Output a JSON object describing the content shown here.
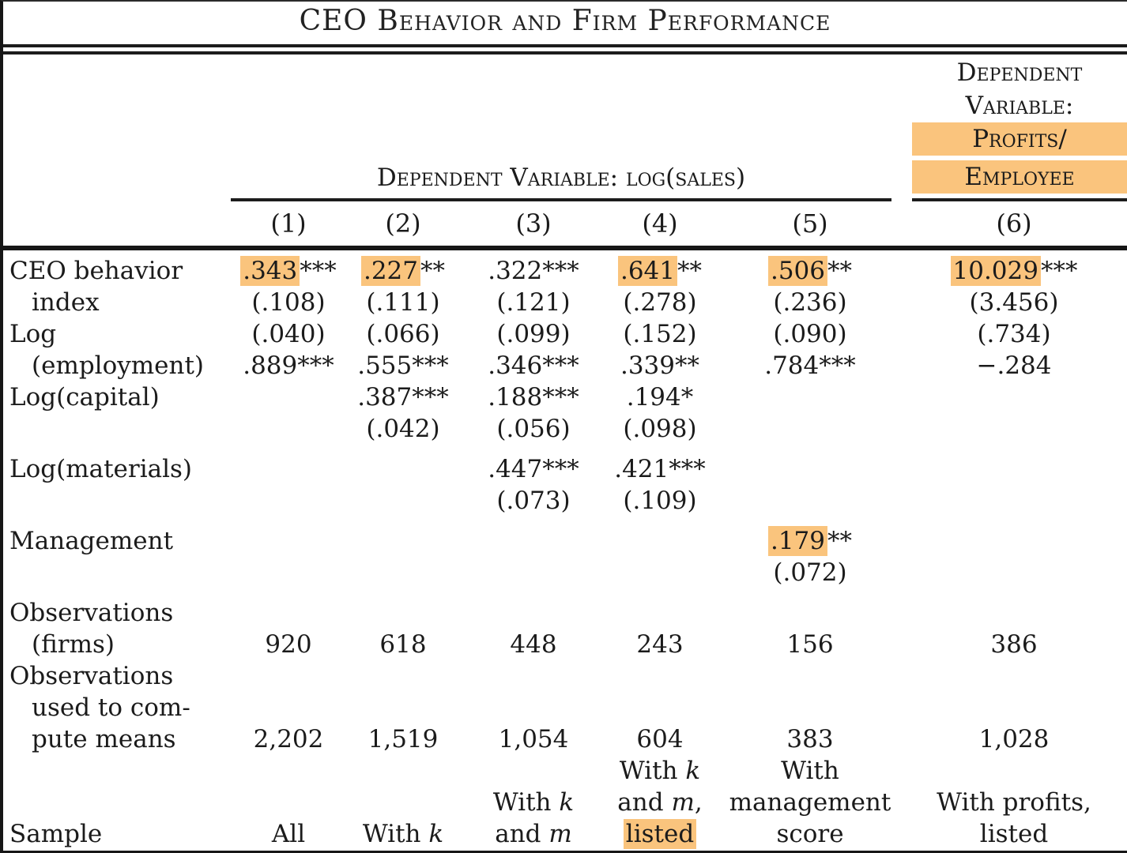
{
  "title": "CEO Behavior and Firm Performance",
  "colors": {
    "highlight": "#fac47d",
    "text": "#1b1b1b",
    "rule": "#161616"
  },
  "header": {
    "dep_sales": "Dependent Variable: log(sales)",
    "dep_profits_lines": [
      {
        "text": "Dependent",
        "hl": false
      },
      {
        "text": "Variable:",
        "hl": false
      },
      {
        "text": "Profits/",
        "hl": true
      },
      {
        "text": "Employee",
        "hl": true
      }
    ],
    "col_numbers": [
      "(1)",
      "(2)",
      "(3)",
      "(4)",
      "(5)",
      "(6)"
    ]
  },
  "table": {
    "rows": [
      {
        "label": "CEO behavior",
        "indent": 0,
        "cells": [
          "[.343]***",
          "[.227]**",
          ".322***",
          "[.641]**",
          "[.506]**",
          "[10.029]***"
        ]
      },
      {
        "label": "index",
        "indent": 1,
        "cells": [
          "(.108)",
          "(.111)",
          "(.121)",
          "(.278)",
          "(.236)",
          "(3.456)"
        ]
      },
      {
        "label": "Log",
        "indent": 0,
        "cells": [
          "(.040)",
          "(.066)",
          "(.099)",
          "(.152)",
          "(.090)",
          "(.734)"
        ]
      },
      {
        "label": "(employment)",
        "indent": 1,
        "cells": [
          ".889***",
          ".555***",
          ".346***",
          ".339**",
          ".784***",
          "−.284"
        ]
      },
      {
        "label": "Log(capital)",
        "indent": 0,
        "cells": [
          "",
          ".387***",
          ".188***",
          ".194*",
          "",
          ""
        ]
      },
      {
        "label": "",
        "indent": 0,
        "cells": [
          "",
          "(.042)",
          "(.056)",
          "(.098)",
          "",
          ""
        ]
      },
      {
        "label": "",
        "indent": 0,
        "gap": true,
        "cells": []
      },
      {
        "label": "Log(materials)",
        "indent": 0,
        "cells": [
          "",
          "",
          ".447***",
          ".421***",
          "",
          ""
        ]
      },
      {
        "label": "",
        "indent": 0,
        "cells": [
          "",
          "",
          "(.073)",
          "(.109)",
          "",
          ""
        ]
      },
      {
        "label": "",
        "indent": 0,
        "gap": true,
        "cells": []
      },
      {
        "label": "Management",
        "indent": 0,
        "cells": [
          "",
          "",
          "",
          "",
          "[.179]**",
          ""
        ]
      },
      {
        "label": "",
        "indent": 0,
        "cells": [
          "",
          "",
          "",
          "",
          "(.072)",
          ""
        ]
      },
      {
        "label": "",
        "indent": 0,
        "gap": true,
        "cells": []
      },
      {
        "label": "Observations",
        "indent": 0,
        "cells": [
          "",
          "",
          "",
          "",
          "",
          ""
        ]
      },
      {
        "label": "(firms)",
        "indent": 1,
        "cells": [
          "920",
          "618",
          "448",
          "243",
          "156",
          "386"
        ]
      },
      {
        "label": "Observations",
        "indent": 0,
        "cells": [
          "",
          "",
          "",
          "",
          "",
          ""
        ]
      },
      {
        "label": "used to com-",
        "indent": 1,
        "cells": [
          "",
          "",
          "",
          "",
          "",
          ""
        ]
      },
      {
        "label": "pute means",
        "indent": 1,
        "cells": [
          "2,202",
          "1,519",
          "1,054",
          "604",
          "383",
          "1,028"
        ]
      },
      {
        "label": "",
        "indent": 0,
        "cells": [
          "",
          "",
          "",
          "With {k}",
          "With",
          ""
        ]
      },
      {
        "label": "",
        "indent": 0,
        "cells": [
          "",
          "",
          "With {k}",
          "and {m},",
          "management",
          "With profits,"
        ]
      },
      {
        "label": "Sample",
        "indent": 0,
        "cells": [
          "All",
          "With {k}",
          "and {m}",
          "[listed]",
          "score",
          "listed"
        ]
      }
    ]
  }
}
